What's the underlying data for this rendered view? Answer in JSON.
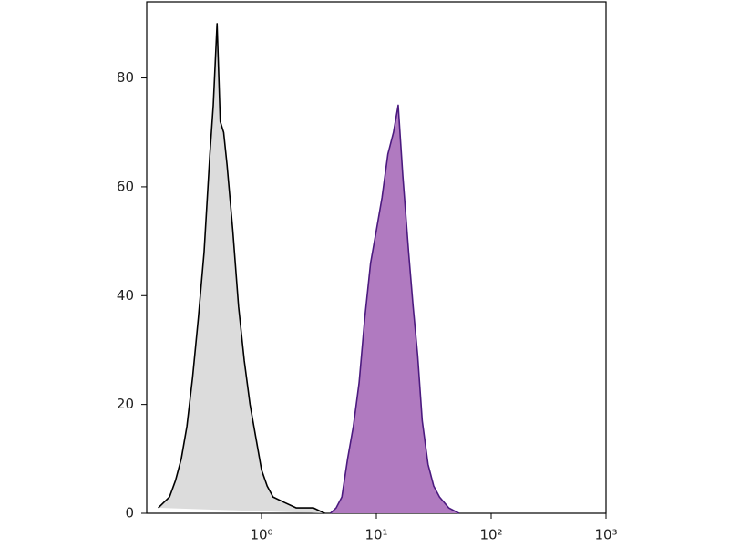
{
  "chart_data": {
    "type": "histogram-overlay",
    "xscale": "log",
    "xlim": [
      0.1,
      1000
    ],
    "ylim": [
      0,
      94
    ],
    "xticks": [
      {
        "value": 1,
        "label": "10⁰"
      },
      {
        "value": 10,
        "label": "10¹"
      },
      {
        "value": 100,
        "label": "10²"
      },
      {
        "value": 1000,
        "label": "10³"
      }
    ],
    "yticks": [
      0,
      20,
      40,
      60,
      80
    ],
    "series": [
      {
        "color": "#000000",
        "fill": "#dcdcdc",
        "x": [
          0.126,
          0.141,
          0.158,
          0.178,
          0.2,
          0.224,
          0.251,
          0.282,
          0.316,
          0.355,
          0.38,
          0.41,
          0.437,
          0.468,
          0.501,
          0.562,
          0.631,
          0.708,
          0.794,
          0.891,
          1,
          1.12,
          1.26,
          1.58,
          2.0,
          2.82,
          3.55
        ],
        "values": [
          1,
          2,
          3,
          6,
          10,
          16,
          25,
          36,
          48,
          66,
          75,
          90,
          72,
          70,
          64,
          52,
          38,
          28,
          20,
          14,
          8,
          5,
          3,
          2,
          1,
          1,
          0
        ]
      },
      {
        "color": "#4b1a7f",
        "fill": "#b07ac0",
        "x": [
          3.98,
          4.47,
          5.01,
          5.62,
          6.31,
          7.08,
          7.94,
          8.91,
          10,
          11.2,
          12.6,
          14.1,
          15.5,
          17,
          19.1,
          20.9,
          22.9,
          25.1,
          28.2,
          31.6,
          35.5,
          42.7,
          52.5
        ],
        "values": [
          0,
          1,
          3,
          10,
          16,
          24,
          36,
          46,
          52,
          58,
          66,
          70,
          75,
          62,
          48,
          38,
          29,
          17,
          9,
          5,
          3,
          1,
          0
        ]
      }
    ]
  }
}
